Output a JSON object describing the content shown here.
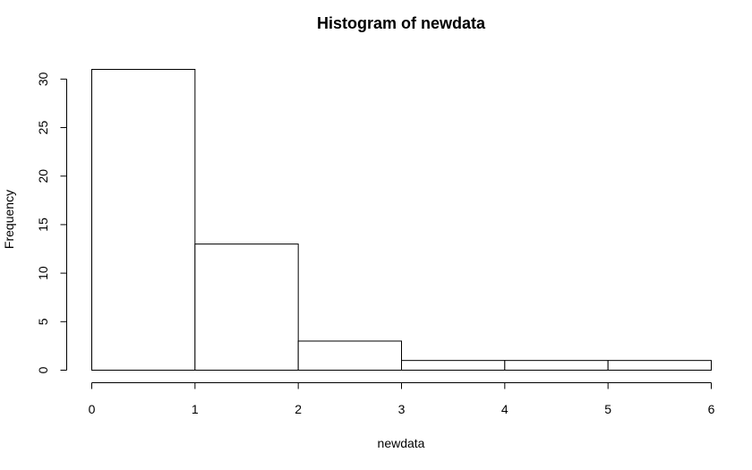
{
  "chart_data": {
    "type": "bar",
    "title": "Histogram of newdata",
    "xlabel": "newdata",
    "ylabel": "Frequency",
    "bins": [
      {
        "from": 0,
        "to": 1,
        "count": 31
      },
      {
        "from": 1,
        "to": 2,
        "count": 13
      },
      {
        "from": 2,
        "to": 3,
        "count": 3
      },
      {
        "from": 3,
        "to": 4,
        "count": 1
      },
      {
        "from": 4,
        "to": 5,
        "count": 1
      },
      {
        "from": 5,
        "to": 6,
        "count": 1
      }
    ],
    "xticks": [
      0,
      1,
      2,
      3,
      4,
      5,
      6
    ],
    "yticks": [
      0,
      5,
      10,
      15,
      20,
      25,
      30
    ],
    "xlim": [
      0,
      6
    ],
    "ylim": [
      0,
      31
    ],
    "grid": false,
    "legend": "none"
  }
}
